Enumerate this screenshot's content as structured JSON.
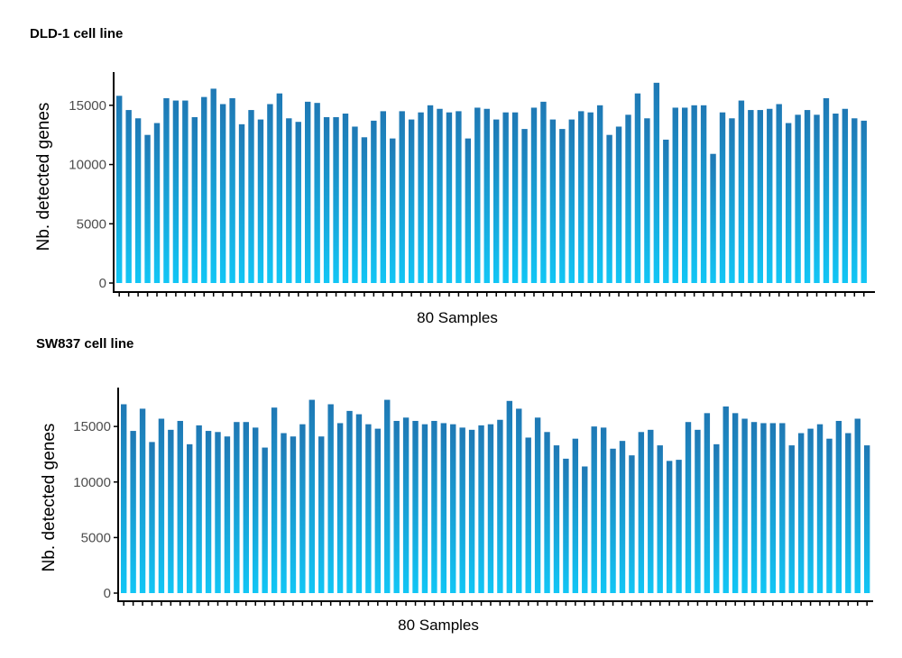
{
  "chart_data": [
    {
      "type": "bar",
      "title": "DLD-1 cell line",
      "xlabel": "80 Samples",
      "ylabel": "Nb. detected genes",
      "ylim": [
        0,
        17800
      ],
      "yticks": [
        0,
        5000,
        10000,
        15000
      ],
      "ytick_labels": [
        "0",
        "5000",
        "10000",
        "15000"
      ],
      "grid": false,
      "legend": "none",
      "bar_color_top": "#1f78b4",
      "bar_color_bottom": "#12c6f5",
      "values": [
        15800,
        14600,
        13900,
        12500,
        13500,
        15600,
        15400,
        15400,
        14000,
        15700,
        16400,
        15100,
        15600,
        13400,
        14600,
        13800,
        15100,
        16000,
        13900,
        13600,
        15300,
        15200,
        14000,
        14000,
        14300,
        13200,
        12300,
        13700,
        14500,
        12200,
        14500,
        13800,
        14400,
        15000,
        14700,
        14400,
        14500,
        12200,
        14800,
        14700,
        13800,
        14400,
        14400,
        13000,
        14800,
        15300,
        13800,
        13000,
        13800,
        14500,
        14400,
        15000,
        12500,
        13200,
        14200,
        16000,
        13900,
        16900,
        12100,
        14800,
        14800,
        15000,
        15000,
        10900,
        14400,
        13900,
        15400,
        14600,
        14600,
        14700,
        15100,
        13500,
        14200,
        14600,
        14200,
        15600,
        14300,
        14700,
        13900,
        13700
      ]
    },
    {
      "type": "bar",
      "title": "SW837 cell line",
      "xlabel": "80 Samples",
      "ylabel": "Nb. detected genes",
      "ylim": [
        0,
        18500
      ],
      "yticks": [
        0,
        5000,
        10000,
        15000
      ],
      "ytick_labels": [
        "0",
        "5000",
        "10000",
        "15000"
      ],
      "grid": false,
      "legend": "none",
      "bar_color_top": "#1f78b4",
      "bar_color_bottom": "#12c6f5",
      "values": [
        17000,
        14600,
        16600,
        13600,
        15700,
        14700,
        15500,
        13400,
        15100,
        14600,
        14500,
        14100,
        15400,
        15400,
        14900,
        13100,
        16700,
        14400,
        14100,
        15200,
        17400,
        14100,
        17000,
        15300,
        16400,
        16100,
        15200,
        14800,
        17400,
        15500,
        15800,
        15500,
        15200,
        15500,
        15300,
        15200,
        14900,
        14700,
        15100,
        15200,
        15600,
        17300,
        16600,
        14000,
        15800,
        14500,
        13300,
        12100,
        13900,
        11400,
        15000,
        14900,
        13000,
        13700,
        12400,
        14500,
        14700,
        13300,
        11900,
        12000,
        15400,
        14700,
        16200,
        13400,
        16800,
        16200,
        15700,
        15400,
        15300,
        15300,
        15300,
        13300,
        14400,
        14800,
        15200,
        13900,
        15500,
        14400,
        15700,
        13300
      ]
    }
  ]
}
